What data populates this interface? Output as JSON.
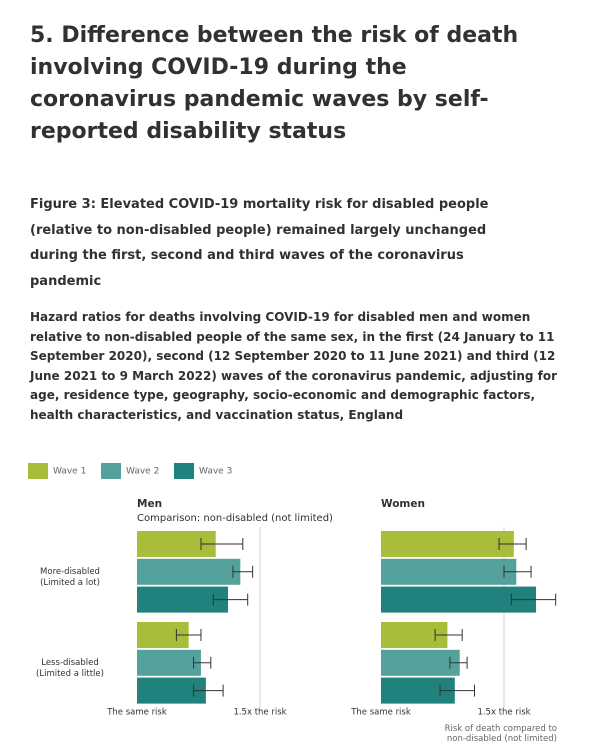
{
  "header": {
    "title": "5.  Difference between the risk of death involving COVID-19 during the coronavirus pandemic waves by self-reported disability status"
  },
  "chart_data": {
    "type": "bar",
    "orientation": "horizontal",
    "title": "Figure 3: Elevated COVID-19 mortality risk for disabled people (relative to non-disabled people) remained largely unchanged during the first, second and third waves of the coronavirus pandemic",
    "subtitle": "Hazard ratios for deaths involving COVID-19 for disabled men and women relative to non-disabled people of the same sex, in the first (24 January to 11 September 2020), second (12 September 2020 to 11 June 2021) and third (12 June 2021 to 9 March 2022) waves of the coronavirus pandemic, adjusting for age, residence type, geography, socio-economic and demographic factors, health characteristics, and vaccination status, England",
    "series": [
      {
        "name": "Wave 1",
        "color": "#a8bd3a"
      },
      {
        "name": "Wave 2",
        "color": "#55a29c"
      },
      {
        "name": "Wave 3",
        "color": "#21817c"
      }
    ],
    "xlim": [
      1,
      1.75
    ],
    "xticks": [
      {
        "value": 1,
        "label": "The same risk"
      },
      {
        "value": 1.5,
        "label": "1.5x the risk"
      }
    ],
    "xlabel": "Risk of death compared to non-disabled (not limited)",
    "grid": true,
    "panels": [
      {
        "title": "Men",
        "subtitle": "Comparison: non-disabled (not limited)",
        "categories": [
          "More-disabled (Limited a lot)",
          "Less-disabled (Limited a little)"
        ],
        "series": [
          {
            "values": [
              1.32,
              1.21
            ],
            "lower": [
              1.26,
              1.16
            ],
            "upper": [
              1.43,
              1.26
            ]
          },
          {
            "values": [
              1.42,
              1.26
            ],
            "lower": [
              1.39,
              1.23
            ],
            "upper": [
              1.47,
              1.3
            ]
          },
          {
            "values": [
              1.37,
              1.28
            ],
            "lower": [
              1.31,
              1.23
            ],
            "upper": [
              1.45,
              1.35
            ]
          }
        ]
      },
      {
        "title": "Women",
        "categories": [
          null,
          null
        ],
        "series": [
          {
            "values": [
              1.54,
              1.27
            ],
            "lower": [
              1.48,
              1.22
            ],
            "upper": [
              1.59,
              1.33
            ]
          },
          {
            "values": [
              1.55,
              1.32
            ],
            "lower": [
              1.5,
              1.28
            ],
            "upper": [
              1.61,
              1.35
            ]
          },
          {
            "values": [
              1.63,
              1.3
            ],
            "lower": [
              1.53,
              1.24
            ],
            "upper": [
              1.71,
              1.38
            ]
          }
        ]
      }
    ]
  }
}
